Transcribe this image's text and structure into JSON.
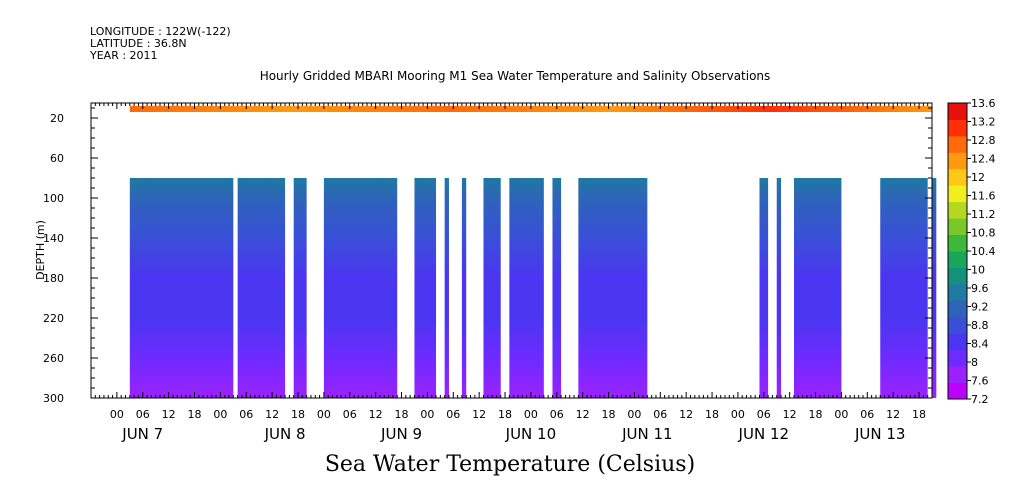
{
  "header": {
    "longitude": "LONGITUDE : 122W(-122)",
    "latitude": "LATITUDE : 36.8N",
    "year": "YEAR : 2011"
  },
  "title": "Hourly Gridded MBARI Mooring M1 Sea Water Temperature and Salinity Observations",
  "x_title": "Sea Water Temperature (Celsius)",
  "chart_data": {
    "type": "heatmap",
    "title": "Hourly Gridded MBARI Mooring M1 Sea Water Temperature and Salinity Observations",
    "ylabel": "DEPTH (m)",
    "xlabel": "Sea Water Temperature (Celsius)",
    "y_reversed": true,
    "ylim": [
      300,
      0
    ],
    "y_ticks": [
      20,
      60,
      100,
      140,
      180,
      220,
      260,
      300
    ],
    "x_hour_ticks": [
      "00",
      "06",
      "12",
      "18",
      "00",
      "06",
      "12",
      "18",
      "00",
      "06",
      "12",
      "18",
      "00",
      "06",
      "12",
      "18",
      "00",
      "06",
      "12",
      "18",
      "00",
      "06",
      "12",
      "18",
      "00",
      "06",
      "12",
      "18",
      "00",
      "06",
      "12",
      "18"
    ],
    "x_hour_values": [
      0,
      6,
      12,
      18,
      24,
      30,
      36,
      42,
      48,
      54,
      60,
      66,
      72,
      78,
      84,
      90,
      96,
      102,
      108,
      114,
      120,
      126,
      132,
      138,
      144,
      150,
      156,
      162,
      168,
      174,
      180,
      186
    ],
    "xlim": [
      -6,
      189
    ],
    "day_labels": [
      {
        "label": "JUN  7",
        "hour": 6
      },
      {
        "label": "JUN  8",
        "hour": 39
      },
      {
        "label": "JUN  9",
        "hour": 66
      },
      {
        "label": "JUN 10",
        "hour": 96
      },
      {
        "label": "JUN 11",
        "hour": 123
      },
      {
        "label": "JUN 12",
        "hour": 150
      },
      {
        "label": "JUN 13",
        "hour": 177
      }
    ],
    "surface_layer": {
      "depth_top": 8,
      "depth_bottom": 14,
      "hour_start": 3,
      "hour_end": 189,
      "temp_range": [
        12.4,
        13.6
      ]
    },
    "deep_layer": {
      "depth_top": 80,
      "depth_bottom": 300,
      "temp_profile": [
        {
          "depth": 80,
          "temp": 9.4
        },
        {
          "depth": 100,
          "temp": 9.0
        },
        {
          "depth": 140,
          "temp": 8.6
        },
        {
          "depth": 180,
          "temp": 8.2
        },
        {
          "depth": 220,
          "temp": 8.0
        },
        {
          "depth": 260,
          "temp": 7.8
        },
        {
          "depth": 300,
          "temp": 7.5
        }
      ],
      "data_segments": [
        [
          3,
          27
        ],
        [
          28,
          39
        ],
        [
          41,
          44
        ],
        [
          48,
          65
        ],
        [
          69,
          74
        ],
        [
          76,
          77
        ],
        [
          80,
          81
        ],
        [
          85,
          89
        ],
        [
          91,
          99
        ],
        [
          101,
          103
        ],
        [
          107,
          123
        ],
        [
          149,
          151
        ],
        [
          153,
          154
        ],
        [
          157,
          168
        ],
        [
          177,
          188
        ],
        [
          189,
          190
        ]
      ]
    },
    "colorbar": {
      "levels": [
        7.2,
        7.6,
        8,
        8.4,
        8.8,
        9.2,
        9.6,
        10,
        10.4,
        10.8,
        11.2,
        11.6,
        12,
        12.4,
        12.8,
        13.2,
        13.6
      ],
      "colors": [
        "#bb00ff",
        "#9a22ff",
        "#6e2bff",
        "#4a36f0",
        "#3a4fd8",
        "#2d64b8",
        "#1e7aa2",
        "#15907a",
        "#1aa65a",
        "#3cb83a",
        "#78c82a",
        "#b4d820",
        "#f0ee20",
        "#ffc814",
        "#ff9a10",
        "#ff6a0c",
        "#ff3008",
        "#e8100a"
      ]
    }
  }
}
